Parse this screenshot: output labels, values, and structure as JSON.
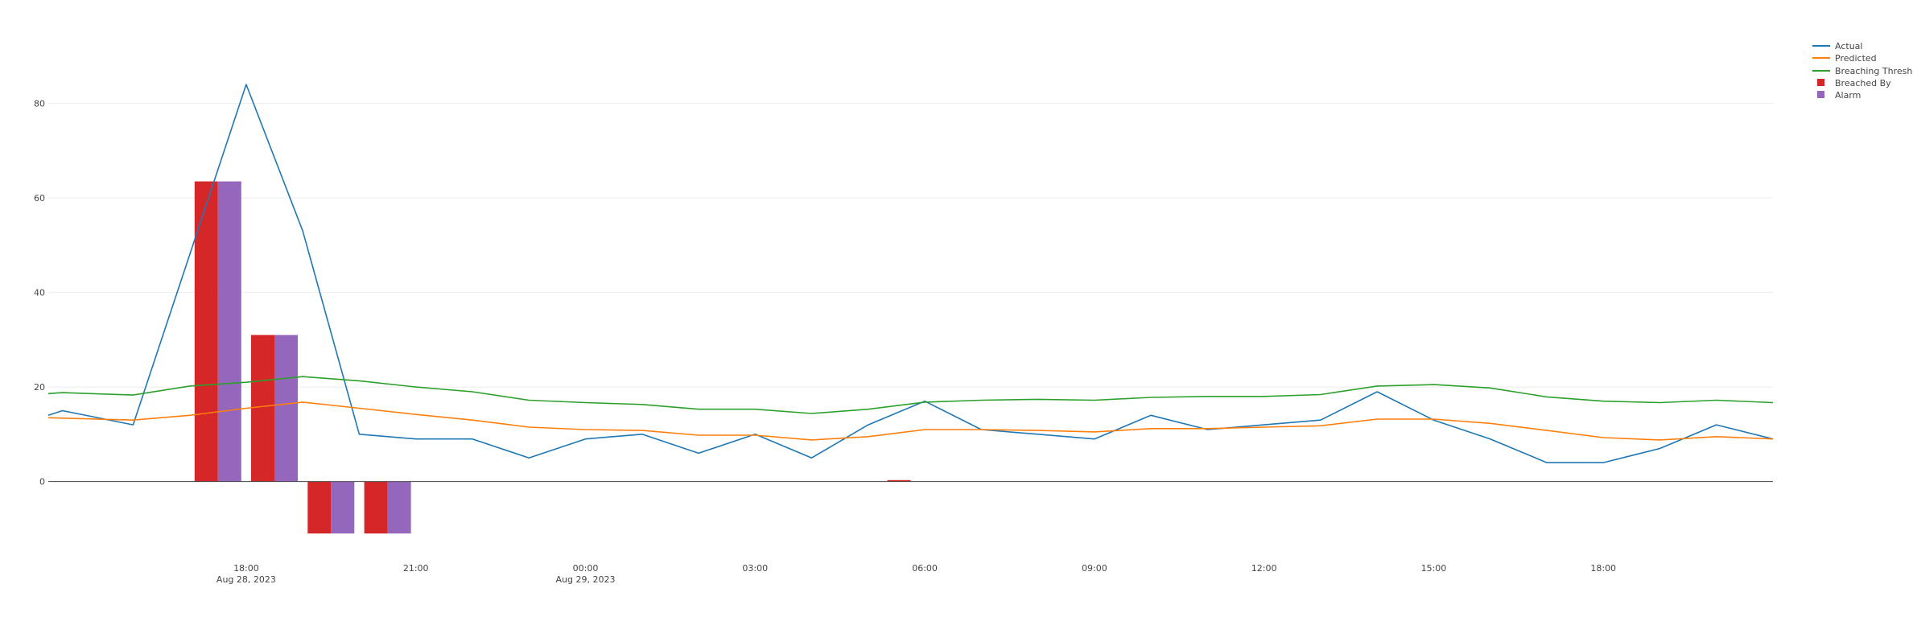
{
  "colors": {
    "actual": "#1f77b4",
    "predicted": "#ff7f0e",
    "threshold": "#2ca02c",
    "breached": "#d62728",
    "alarm": "#9467bd",
    "grid": "#eeeeee",
    "zero": "#444444"
  },
  "legend": {
    "actual": "Actual",
    "predicted": "Predicted",
    "threshold": "Breaching Threshold",
    "breached": "Breached By",
    "alarm": "Alarm"
  },
  "chart_data": {
    "type": "line",
    "title": "",
    "xlabel": "",
    "ylabel": "",
    "grid": true,
    "legend_position": "top-right",
    "x_range": [
      "2023-08-28 14:30",
      "2023-08-29 21:00"
    ],
    "ylim": [
      -13,
      92
    ],
    "y_ticks": [
      0,
      20,
      40,
      60,
      80
    ],
    "x_ticks": [
      {
        "t": "2023-08-28 18:00",
        "label": "18:00",
        "sublabel": "Aug 28, 2023"
      },
      {
        "t": "2023-08-28 21:00",
        "label": "21:00",
        "sublabel": ""
      },
      {
        "t": "2023-08-29 00:00",
        "label": "00:00",
        "sublabel": "Aug 29, 2023"
      },
      {
        "t": "2023-08-29 03:00",
        "label": "03:00",
        "sublabel": ""
      },
      {
        "t": "2023-08-29 06:00",
        "label": "06:00",
        "sublabel": ""
      },
      {
        "t": "2023-08-29 09:00",
        "label": "09:00",
        "sublabel": ""
      },
      {
        "t": "2023-08-29 12:00",
        "label": "12:00",
        "sublabel": ""
      },
      {
        "t": "2023-08-29 15:00",
        "label": "15:00",
        "sublabel": ""
      },
      {
        "t": "2023-08-29 18:00",
        "label": "18:00",
        "sublabel": ""
      }
    ],
    "series": [
      {
        "name": "Actual",
        "key": "actual",
        "kind": "line",
        "x": [
          "2023-08-28 14:30",
          "2023-08-28 14:45",
          "2023-08-28 16:00",
          "2023-08-28 17:00",
          "2023-08-28 18:00",
          "2023-08-28 19:00",
          "2023-08-28 20:00",
          "2023-08-28 21:00",
          "2023-08-28 22:00",
          "2023-08-28 23:00",
          "2023-08-29 00:00",
          "2023-08-29 01:00",
          "2023-08-29 02:00",
          "2023-08-29 03:00",
          "2023-08-29 04:00",
          "2023-08-29 05:00",
          "2023-08-29 06:00",
          "2023-08-29 07:00",
          "2023-08-29 08:00",
          "2023-08-29 09:00",
          "2023-08-29 10:00",
          "2023-08-29 11:00",
          "2023-08-29 12:00",
          "2023-08-29 13:00",
          "2023-08-29 14:00",
          "2023-08-29 15:00",
          "2023-08-29 16:00",
          "2023-08-29 17:00",
          "2023-08-29 18:00",
          "2023-08-29 19:00",
          "2023-08-29 20:00",
          "2023-08-29 21:00"
        ],
        "y": [
          14,
          15,
          12,
          48,
          84,
          53,
          10,
          9,
          9,
          5,
          9,
          10,
          6,
          10,
          5,
          12,
          17,
          11,
          10,
          9,
          14,
          11,
          12,
          13,
          19,
          13,
          9,
          4,
          4,
          7,
          12,
          9
        ]
      },
      {
        "name": "Predicted",
        "key": "predicted",
        "kind": "line",
        "x": [
          "2023-08-28 14:30",
          "2023-08-28 16:00",
          "2023-08-28 17:00",
          "2023-08-28 18:00",
          "2023-08-28 19:00",
          "2023-08-28 20:00",
          "2023-08-28 21:00",
          "2023-08-28 22:00",
          "2023-08-28 23:00",
          "2023-08-29 00:00",
          "2023-08-29 01:00",
          "2023-08-29 02:00",
          "2023-08-29 03:00",
          "2023-08-29 04:00",
          "2023-08-29 05:00",
          "2023-08-29 06:00",
          "2023-08-29 07:00",
          "2023-08-29 08:00",
          "2023-08-29 09:00",
          "2023-08-29 10:00",
          "2023-08-29 11:00",
          "2023-08-29 12:00",
          "2023-08-29 13:00",
          "2023-08-29 14:00",
          "2023-08-29 15:00",
          "2023-08-29 16:00",
          "2023-08-29 17:00",
          "2023-08-29 18:00",
          "2023-08-29 19:00",
          "2023-08-29 20:00",
          "2023-08-29 21:00"
        ],
        "y": [
          13.5,
          13,
          14,
          15.5,
          16.8,
          15.5,
          14.2,
          13,
          11.5,
          11,
          10.8,
          9.8,
          9.8,
          8.8,
          9.5,
          11,
          11,
          10.8,
          10.5,
          11.2,
          11.2,
          11.5,
          11.8,
          13.2,
          13.2,
          12.3,
          10.8,
          9.3,
          8.8,
          9.5,
          9
        ]
      },
      {
        "name": "Breaching Threshold",
        "key": "threshold",
        "kind": "line",
        "x": [
          "2023-08-28 14:30",
          "2023-08-28 14:45",
          "2023-08-28 16:00",
          "2023-08-28 17:00",
          "2023-08-28 18:00",
          "2023-08-28 19:00",
          "2023-08-28 20:00",
          "2023-08-28 21:00",
          "2023-08-28 22:00",
          "2023-08-28 23:00",
          "2023-08-29 00:00",
          "2023-08-29 01:00",
          "2023-08-29 02:00",
          "2023-08-29 03:00",
          "2023-08-29 04:00",
          "2023-08-29 05:00",
          "2023-08-29 06:00",
          "2023-08-29 07:00",
          "2023-08-29 08:00",
          "2023-08-29 09:00",
          "2023-08-29 10:00",
          "2023-08-29 11:00",
          "2023-08-29 12:00",
          "2023-08-29 13:00",
          "2023-08-29 14:00",
          "2023-08-29 15:00",
          "2023-08-29 16:00",
          "2023-08-29 17:00",
          "2023-08-29 18:00",
          "2023-08-29 19:00",
          "2023-08-29 20:00",
          "2023-08-29 21:00"
        ],
        "y": [
          18.6,
          18.8,
          18.3,
          20.2,
          21,
          22.2,
          21.3,
          20,
          19,
          17.2,
          16.7,
          16.3,
          15.3,
          15.3,
          14.4,
          15.3,
          16.8,
          17.2,
          17.4,
          17.2,
          17.8,
          18,
          18,
          18.4,
          20.2,
          20.5,
          19.8,
          17.9,
          17,
          16.7,
          17.2,
          16.7
        ]
      },
      {
        "name": "Breached By",
        "key": "breached",
        "kind": "bar",
        "x": [
          "2023-08-28 17:30",
          "2023-08-28 18:30",
          "2023-08-28 19:30",
          "2023-08-28 20:30",
          "2023-08-29 05:45"
        ],
        "y": [
          63.5,
          31,
          -11,
          -11,
          0.3
        ]
      },
      {
        "name": "Alarm",
        "key": "alarm",
        "kind": "bar",
        "x": [
          "2023-08-28 17:30",
          "2023-08-28 18:30",
          "2023-08-28 19:30",
          "2023-08-28 20:30"
        ],
        "y": [
          63.5,
          31,
          -11,
          -11
        ]
      }
    ]
  }
}
